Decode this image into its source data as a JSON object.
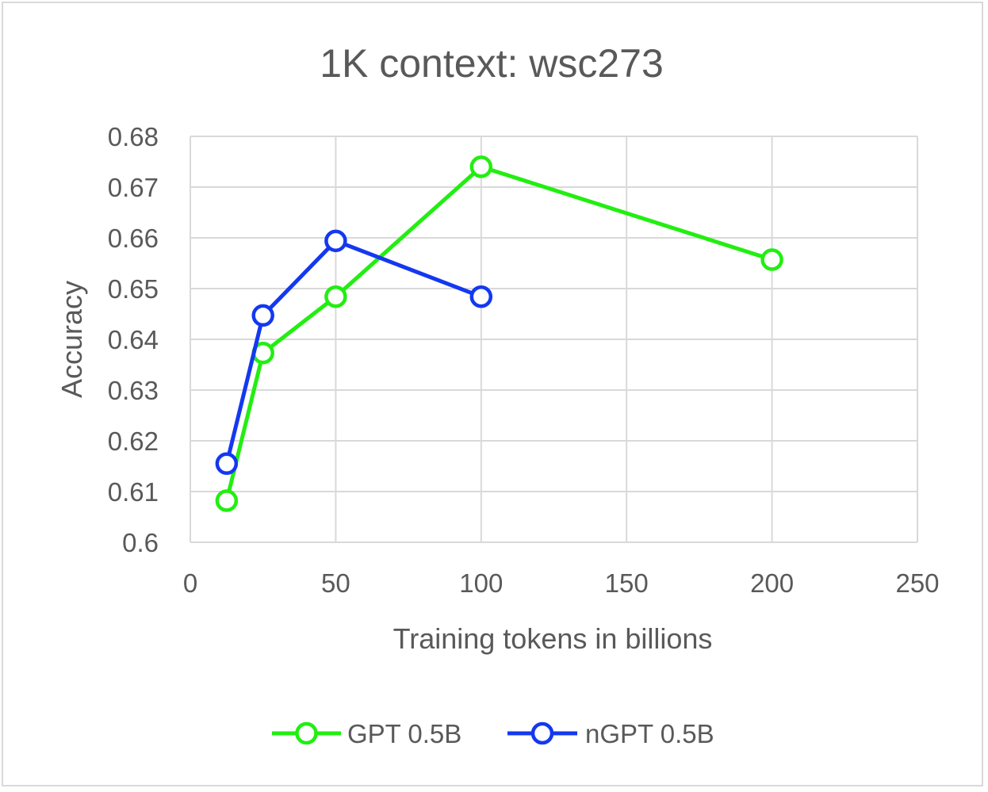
{
  "chart_data": {
    "type": "line",
    "title": "1K context: wsc273",
    "xlabel": "Training tokens in billions",
    "ylabel": "Accuracy",
    "xlim": [
      0,
      250
    ],
    "ylim": [
      0.6,
      0.68
    ],
    "xticks": [
      0,
      50,
      100,
      150,
      200,
      250
    ],
    "xtick_labels": [
      "0",
      "50",
      "100",
      "150",
      "200",
      "250"
    ],
    "yticks": [
      0.6,
      0.61,
      0.62,
      0.63,
      0.64,
      0.65,
      0.66,
      0.67,
      0.68
    ],
    "ytick_labels": [
      "0.6",
      "0.61",
      "0.62",
      "0.63",
      "0.64",
      "0.65",
      "0.66",
      "0.67",
      "0.68"
    ],
    "grid": true,
    "legend_position": "bottom",
    "series": [
      {
        "name": "GPT 0.5B",
        "color": "#22ee11",
        "marker": "circle",
        "points": [
          {
            "x": 12.5,
            "y": 0.6082
          },
          {
            "x": 25,
            "y": 0.6373
          },
          {
            "x": 50,
            "y": 0.6484
          },
          {
            "x": 100,
            "y": 0.674
          },
          {
            "x": 200,
            "y": 0.6557
          }
        ]
      },
      {
        "name": "nGPT 0.5B",
        "color": "#1438f0",
        "marker": "circle",
        "points": [
          {
            "x": 12.5,
            "y": 0.6155
          },
          {
            "x": 25,
            "y": 0.6447
          },
          {
            "x": 50,
            "y": 0.6594
          },
          {
            "x": 100,
            "y": 0.6484
          }
        ]
      }
    ]
  }
}
